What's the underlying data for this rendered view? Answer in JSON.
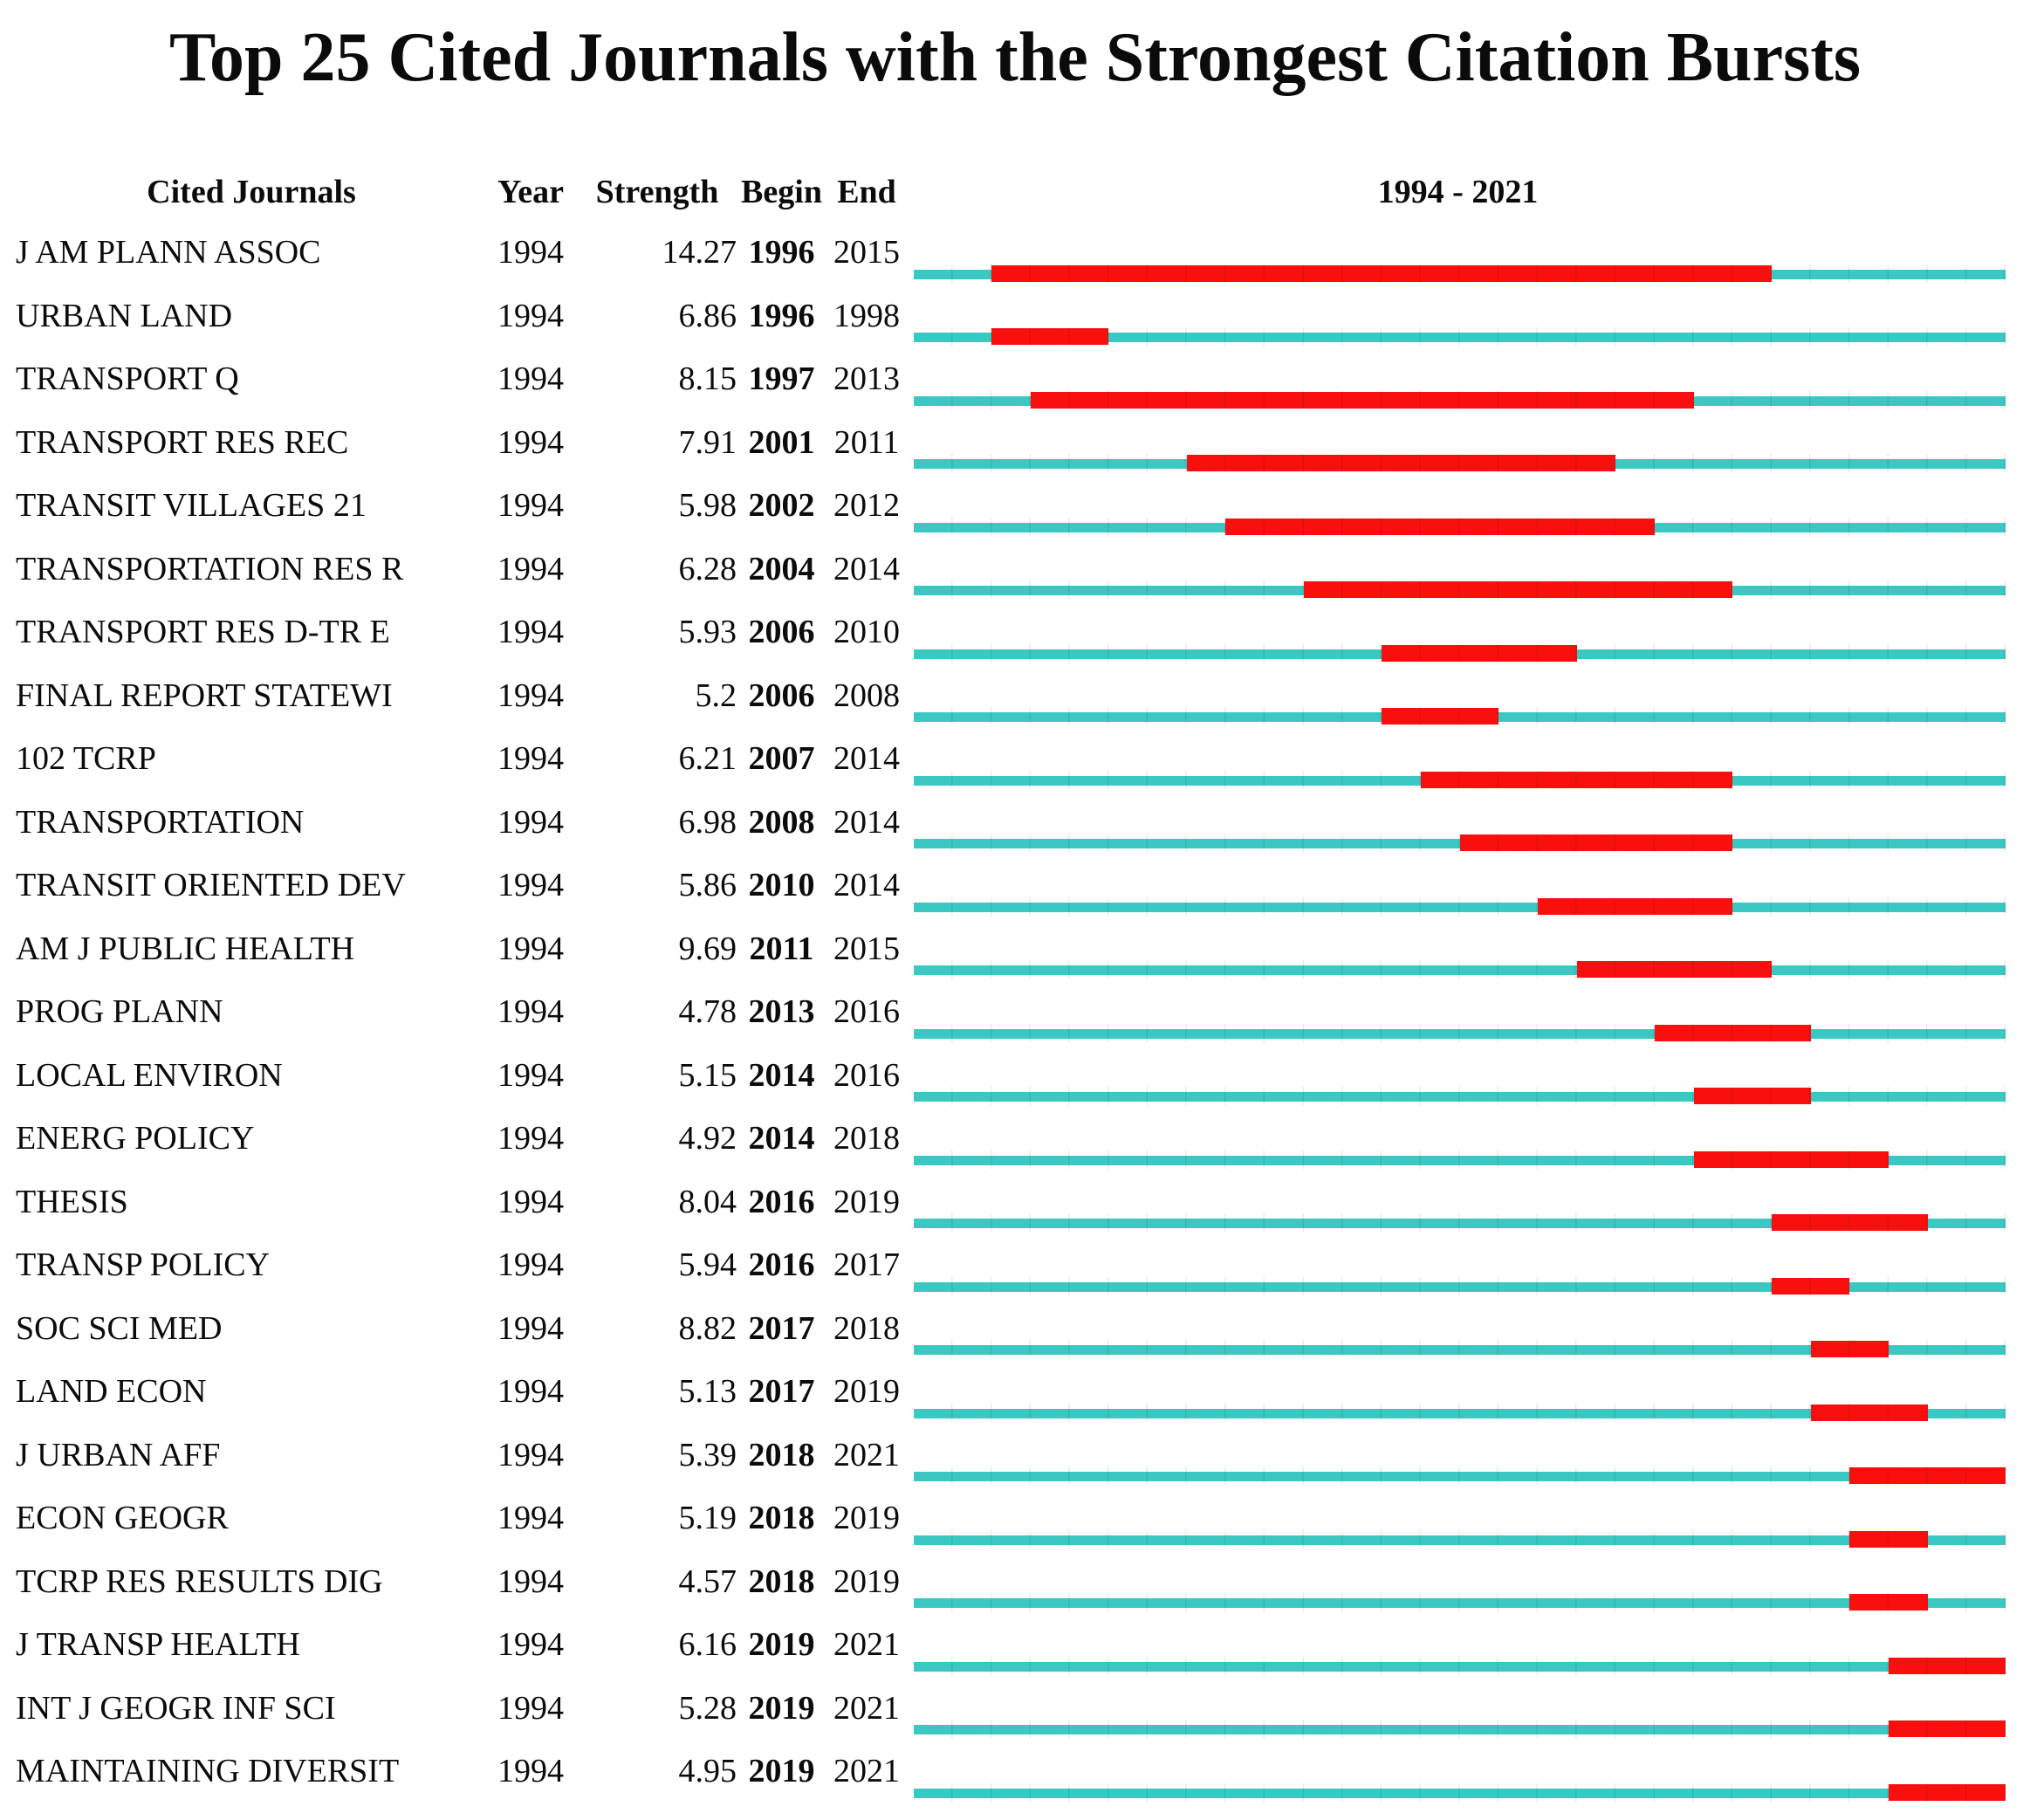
{
  "title": "Top 25 Cited Journals with the Strongest Citation Bursts",
  "columns": {
    "journal": "Cited Journals",
    "year": "Year",
    "strength": "Strength",
    "begin": "Begin",
    "end": "End",
    "range": "1994 - 2021"
  },
  "colors": {
    "baseline": "#3bc7c2",
    "burst": "#fa0f0f",
    "text": "#0b0b0b",
    "background": "#ffffff"
  },
  "chart_data": {
    "type": "bar",
    "subtype": "citation-burst-timeline",
    "title": "Top 25 Cited Journals with the Strongest Citation Bursts",
    "xlabel": "1994 - 2021",
    "x_range": [
      1994,
      2021
    ],
    "grid": false,
    "columns": [
      "Cited Journals",
      "Year",
      "Strength",
      "Begin",
      "End"
    ],
    "rows": [
      {
        "journal": "J AM PLANN ASSOC",
        "year": 1994,
        "strength": "14.27",
        "begin": 1996,
        "end": 2015
      },
      {
        "journal": "URBAN LAND",
        "year": 1994,
        "strength": "6.86",
        "begin": 1996,
        "end": 1998
      },
      {
        "journal": "TRANSPORT Q",
        "year": 1994,
        "strength": "8.15",
        "begin": 1997,
        "end": 2013
      },
      {
        "journal": "TRANSPORT RES REC",
        "year": 1994,
        "strength": "7.91",
        "begin": 2001,
        "end": 2011
      },
      {
        "journal": "TRANSIT VILLAGES 21",
        "year": 1994,
        "strength": "5.98",
        "begin": 2002,
        "end": 2012
      },
      {
        "journal": "TRANSPORTATION RES R",
        "year": 1994,
        "strength": "6.28",
        "begin": 2004,
        "end": 2014
      },
      {
        "journal": "TRANSPORT RES D-TR E",
        "year": 1994,
        "strength": "5.93",
        "begin": 2006,
        "end": 2010
      },
      {
        "journal": "FINAL REPORT STATEWI",
        "year": 1994,
        "strength": "5.2",
        "begin": 2006,
        "end": 2008
      },
      {
        "journal": "102 TCRP",
        "year": 1994,
        "strength": "6.21",
        "begin": 2007,
        "end": 2014
      },
      {
        "journal": "TRANSPORTATION",
        "year": 1994,
        "strength": "6.98",
        "begin": 2008,
        "end": 2014
      },
      {
        "journal": "TRANSIT ORIENTED DEV",
        "year": 1994,
        "strength": "5.86",
        "begin": 2010,
        "end": 2014
      },
      {
        "journal": "AM J PUBLIC HEALTH",
        "year": 1994,
        "strength": "9.69",
        "begin": 2011,
        "end": 2015
      },
      {
        "journal": "PROG PLANN",
        "year": 1994,
        "strength": "4.78",
        "begin": 2013,
        "end": 2016
      },
      {
        "journal": "LOCAL ENVIRON",
        "year": 1994,
        "strength": "5.15",
        "begin": 2014,
        "end": 2016
      },
      {
        "journal": "ENERG POLICY",
        "year": 1994,
        "strength": "4.92",
        "begin": 2014,
        "end": 2018
      },
      {
        "journal": "THESIS",
        "year": 1994,
        "strength": "8.04",
        "begin": 2016,
        "end": 2019
      },
      {
        "journal": "TRANSP POLICY",
        "year": 1994,
        "strength": "5.94",
        "begin": 2016,
        "end": 2017
      },
      {
        "journal": "SOC SCI MED",
        "year": 1994,
        "strength": "8.82",
        "begin": 2017,
        "end": 2018
      },
      {
        "journal": "LAND ECON",
        "year": 1994,
        "strength": "5.13",
        "begin": 2017,
        "end": 2019
      },
      {
        "journal": "J URBAN AFF",
        "year": 1994,
        "strength": "5.39",
        "begin": 2018,
        "end": 2021
      },
      {
        "journal": "ECON GEOGR",
        "year": 1994,
        "strength": "5.19",
        "begin": 2018,
        "end": 2019
      },
      {
        "journal": "TCRP RES RESULTS DIG",
        "year": 1994,
        "strength": "4.57",
        "begin": 2018,
        "end": 2019
      },
      {
        "journal": "J TRANSP HEALTH",
        "year": 1994,
        "strength": "6.16",
        "begin": 2019,
        "end": 2021
      },
      {
        "journal": "INT J GEOGR INF SCI",
        "year": 1994,
        "strength": "5.28",
        "begin": 2019,
        "end": 2021
      },
      {
        "journal": "MAINTAINING DIVERSIT",
        "year": 1994,
        "strength": "4.95",
        "begin": 2019,
        "end": 2021
      }
    ]
  }
}
